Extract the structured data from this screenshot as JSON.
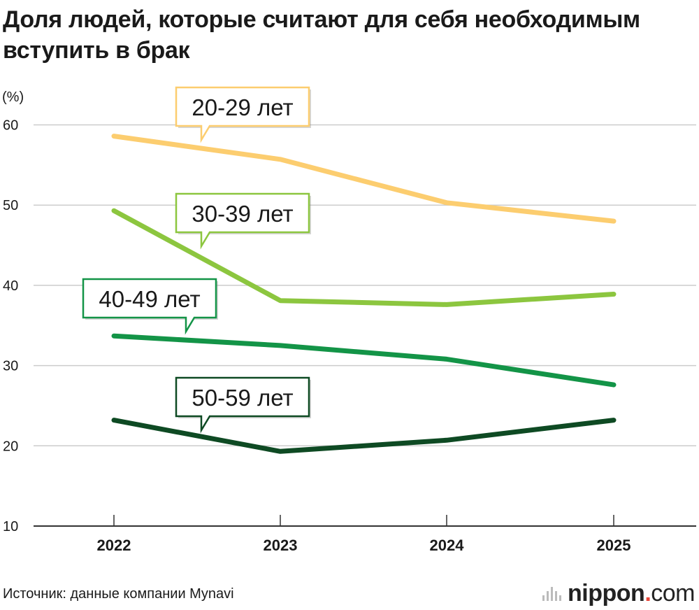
{
  "title": "Доля людей, которые считают для себя необходимым вступить в брак",
  "source": "Источник: данные компании Mynavi",
  "logo": {
    "brand": "nippon",
    "dot": ".",
    "tld": "com"
  },
  "colors": {
    "s20": "#fccd6f",
    "s30": "#8cc63f",
    "s40": "#139447",
    "s50": "#0e4a23",
    "grid": "#cccccc",
    "axis": "#333333"
  },
  "chart_data": {
    "type": "line",
    "title": "Доля людей, которые считают для себя необходимым вступить в брак",
    "ylabel": "(%)",
    "xlabel": "",
    "x": [
      "2022",
      "2023",
      "2024",
      "2025"
    ],
    "ylim": [
      10,
      60
    ],
    "yticks": [
      10,
      20,
      30,
      40,
      50,
      60
    ],
    "grid": true,
    "series": [
      {
        "name": "20-29 лет",
        "color": "#fccd6f",
        "values": [
          58.6,
          55.7,
          50.3,
          48.0
        ]
      },
      {
        "name": "30-39 лет",
        "color": "#8cc63f",
        "values": [
          49.3,
          38.1,
          37.6,
          38.9
        ]
      },
      {
        "name": "40-49 лет",
        "color": "#139447",
        "values": [
          33.7,
          32.5,
          30.8,
          27.6
        ]
      },
      {
        "name": "50-59 лет",
        "color": "#0e4a23",
        "values": [
          23.2,
          19.3,
          20.7,
          23.2
        ]
      }
    ]
  }
}
